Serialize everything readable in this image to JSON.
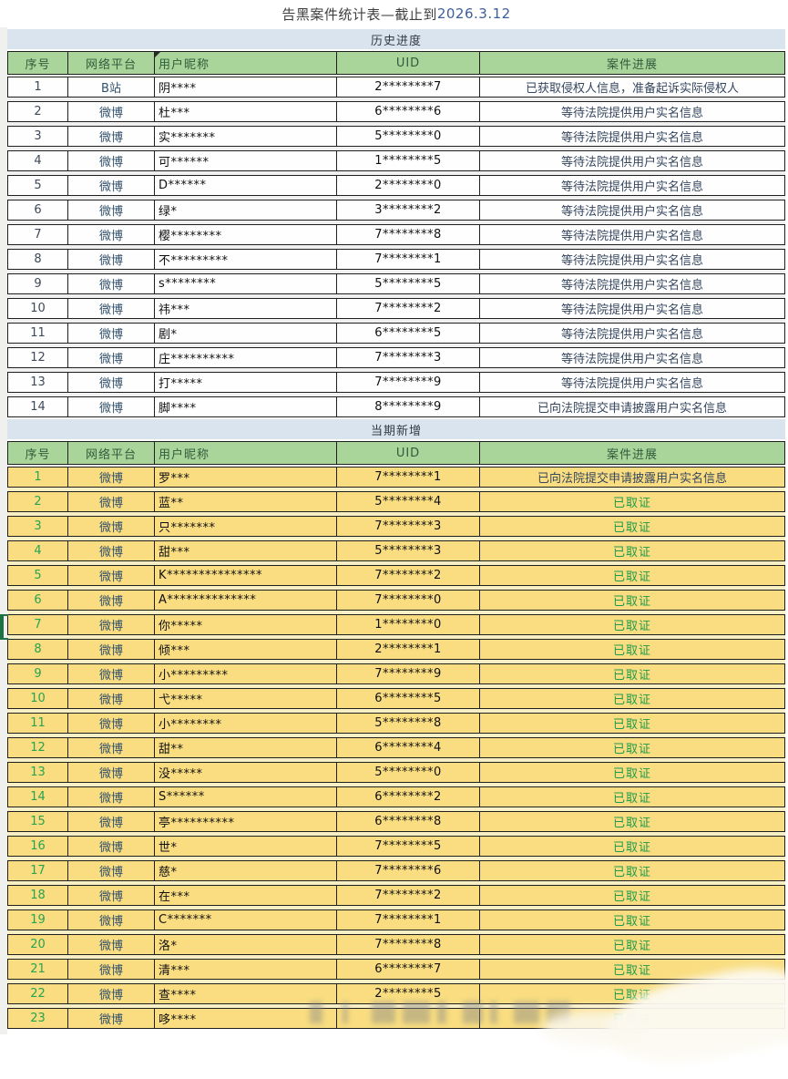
{
  "title": {
    "main": "告黑案件统计表—截止到",
    "date": "2026.3.12"
  },
  "columns": [
    "序号",
    "网络平台",
    "用户昵称",
    "UID",
    "案件进展"
  ],
  "colors": {
    "header_green": "#aad59a",
    "section_bar_blue": "#d9e4ef",
    "row_yellow": "#f9dd80",
    "row_white": "#fefefe",
    "status_green_text": "#1d9b4c",
    "status_dark_text": "#35465f",
    "selection_green": "#1e7145"
  },
  "sections": [
    {
      "name": "历史进度",
      "theme": "white",
      "rows": [
        {
          "no": "1",
          "platform": "B站",
          "nickname": "阴****",
          "uid": "2********7",
          "status": "已获取侵权人信息，准备起诉实际侵权人",
          "status_style": "dark"
        },
        {
          "no": "2",
          "platform": "微博",
          "nickname": "杜***",
          "uid": "6********6",
          "status": "等待法院提供用户实名信息",
          "status_style": "dark"
        },
        {
          "no": "3",
          "platform": "微博",
          "nickname": "实*******",
          "uid": "5********0",
          "status": "等待法院提供用户实名信息",
          "status_style": "dark"
        },
        {
          "no": "4",
          "platform": "微博",
          "nickname": "可******",
          "uid": "1********5",
          "status": "等待法院提供用户实名信息",
          "status_style": "dark"
        },
        {
          "no": "5",
          "platform": "微博",
          "nickname": "D******",
          "uid": "2********0",
          "status": "等待法院提供用户实名信息",
          "status_style": "dark"
        },
        {
          "no": "6",
          "platform": "微博",
          "nickname": "绿*",
          "uid": "3********2",
          "status": "等待法院提供用户实名信息",
          "status_style": "dark"
        },
        {
          "no": "7",
          "platform": "微博",
          "nickname": "樱********",
          "uid": "7********8",
          "status": "等待法院提供用户实名信息",
          "status_style": "dark"
        },
        {
          "no": "8",
          "platform": "微博",
          "nickname": "不*********",
          "uid": "7********1",
          "status": "等待法院提供用户实名信息",
          "status_style": "dark"
        },
        {
          "no": "9",
          "platform": "微博",
          "nickname": "s********",
          "uid": "5********5",
          "status": "等待法院提供用户实名信息",
          "status_style": "dark"
        },
        {
          "no": "10",
          "platform": "微博",
          "nickname": "祎***",
          "uid": "7********2",
          "status": "等待法院提供用户实名信息",
          "status_style": "dark"
        },
        {
          "no": "11",
          "platform": "微博",
          "nickname": "剧*",
          "uid": "6********5",
          "status": "等待法院提供用户实名信息",
          "status_style": "dark"
        },
        {
          "no": "12",
          "platform": "微博",
          "nickname": "庄**********",
          "uid": "7********3",
          "status": "等待法院提供用户实名信息",
          "status_style": "dark"
        },
        {
          "no": "13",
          "platform": "微博",
          "nickname": "打*****",
          "uid": "7********9",
          "status": "等待法院提供用户实名信息",
          "status_style": "dark"
        },
        {
          "no": "14",
          "platform": "微博",
          "nickname": "脚****",
          "uid": "8********9",
          "status": "已向法院提交申请披露用户实名信息",
          "status_style": "dark"
        }
      ]
    },
    {
      "name": "当期新增",
      "theme": "yellow",
      "rows": [
        {
          "no": "1",
          "platform": "微博",
          "nickname": "罗***",
          "uid": "7********1",
          "status": "已向法院提交申请披露用户实名信息",
          "status_style": "dark"
        },
        {
          "no": "2",
          "platform": "微博",
          "nickname": "蓝**",
          "uid": "5********4",
          "status": "已取证",
          "status_style": "green"
        },
        {
          "no": "3",
          "platform": "微博",
          "nickname": "只*******",
          "uid": "7********3",
          "status": "已取证",
          "status_style": "green"
        },
        {
          "no": "4",
          "platform": "微博",
          "nickname": "甜***",
          "uid": "5********3",
          "status": "已取证",
          "status_style": "green"
        },
        {
          "no": "5",
          "platform": "微博",
          "nickname": "K***************",
          "uid": "7********2",
          "status": "已取证",
          "status_style": "green"
        },
        {
          "no": "6",
          "platform": "微博",
          "nickname": "A**************",
          "uid": "7********0",
          "status": "已取证",
          "status_style": "green"
        },
        {
          "no": "7",
          "platform": "微博",
          "nickname": "你*****",
          "uid": "1********0",
          "status": "已取证",
          "status_style": "green",
          "selected": true
        },
        {
          "no": "8",
          "platform": "微博",
          "nickname": "倾***",
          "uid": "2********1",
          "status": "已取证",
          "status_style": "green"
        },
        {
          "no": "9",
          "platform": "微博",
          "nickname": "小*********",
          "uid": "7********9",
          "status": "已取证",
          "status_style": "green"
        },
        {
          "no": "10",
          "platform": "微博",
          "nickname": "弋*****",
          "uid": "6********5",
          "status": "已取证",
          "status_style": "green"
        },
        {
          "no": "11",
          "platform": "微博",
          "nickname": "小********",
          "uid": "5********8",
          "status": "已取证",
          "status_style": "green"
        },
        {
          "no": "12",
          "platform": "微博",
          "nickname": "甜**",
          "uid": "6********4",
          "status": "已取证",
          "status_style": "green"
        },
        {
          "no": "13",
          "platform": "微博",
          "nickname": "没*****",
          "uid": "5********0",
          "status": "已取证",
          "status_style": "green"
        },
        {
          "no": "14",
          "platform": "微博",
          "nickname": "S******",
          "uid": "6********2",
          "status": "已取证",
          "status_style": "green"
        },
        {
          "no": "15",
          "platform": "微博",
          "nickname": "亭**********",
          "uid": "6********8",
          "status": "已取证",
          "status_style": "green"
        },
        {
          "no": "16",
          "platform": "微博",
          "nickname": "世*",
          "uid": "7********5",
          "status": "已取证",
          "status_style": "green"
        },
        {
          "no": "17",
          "platform": "微博",
          "nickname": "慈*",
          "uid": "7********6",
          "status": "已取证",
          "status_style": "green"
        },
        {
          "no": "18",
          "platform": "微博",
          "nickname": "在***",
          "uid": "7********2",
          "status": "已取证",
          "status_style": "green"
        },
        {
          "no": "19",
          "platform": "微博",
          "nickname": "C*******",
          "uid": "7********1",
          "status": "已取证",
          "status_style": "green"
        },
        {
          "no": "20",
          "platform": "微博",
          "nickname": "洛*",
          "uid": "7********8",
          "status": "已取证",
          "status_style": "green"
        },
        {
          "no": "21",
          "platform": "微博",
          "nickname": "清***",
          "uid": "6********7",
          "status": "已取证",
          "status_style": "green"
        },
        {
          "no": "22",
          "platform": "微博",
          "nickname": "查****",
          "uid": "2********5",
          "status": "已取证",
          "status_style": "green"
        },
        {
          "no": "23",
          "platform": "微博",
          "nickname": "哆****",
          "uid": "",
          "status": "已取证",
          "status_style": "green"
        }
      ]
    }
  ]
}
